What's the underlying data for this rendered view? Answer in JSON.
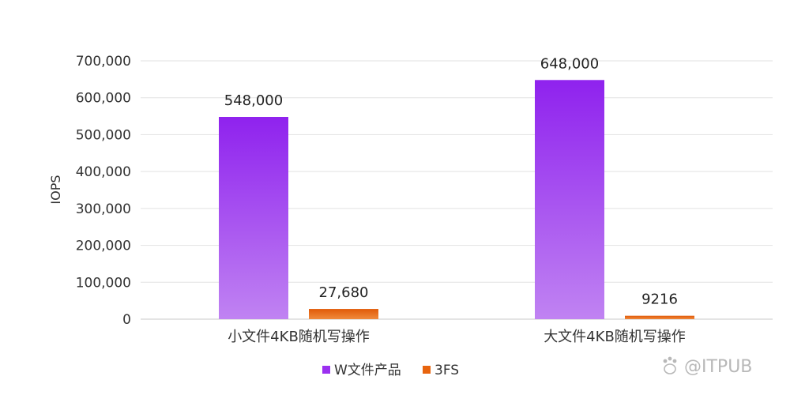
{
  "chart_data": {
    "type": "bar",
    "categories": [
      "小文件4KB随机写操作",
      "大文件4KB随机写操作"
    ],
    "series": [
      {
        "name": "W文件产品",
        "values": [
          548000,
          648000
        ],
        "labels": [
          "548,000",
          "648,000"
        ],
        "color": "#9b30f0"
      },
      {
        "name": "3FS",
        "values": [
          27680,
          9216
        ],
        "labels": [
          "27,680",
          "9216"
        ],
        "color": "#e8640e"
      }
    ],
    "ylabel": "IOPS",
    "ylim": [
      0,
      700000
    ],
    "yticks": [
      0,
      100000,
      200000,
      300000,
      400000,
      500000,
      600000,
      700000
    ],
    "ytick_labels": [
      "0",
      "100,000",
      "200,000",
      "300,000",
      "400,000",
      "500,000",
      "600,000",
      "700,000"
    ],
    "grid": true,
    "legend": "bottom-center"
  },
  "watermark": {
    "text": "@ITPUB",
    "icon": "paw-icon"
  }
}
